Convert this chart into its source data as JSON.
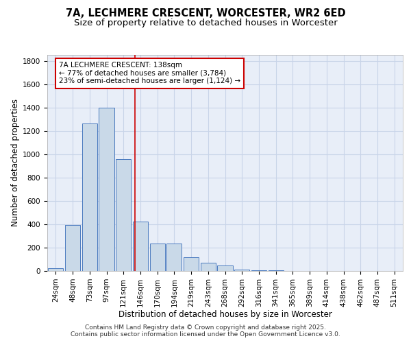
{
  "title_line1": "7A, LECHMERE CRESCENT, WORCESTER, WR2 6ED",
  "title_line2": "Size of property relative to detached houses in Worcester",
  "xlabel": "Distribution of detached houses by size in Worcester",
  "ylabel": "Number of detached properties",
  "bin_labels": [
    "24sqm",
    "48sqm",
    "73sqm",
    "97sqm",
    "121sqm",
    "146sqm",
    "170sqm",
    "194sqm",
    "219sqm",
    "243sqm",
    "268sqm",
    "292sqm",
    "316sqm",
    "341sqm",
    "365sqm",
    "389sqm",
    "414sqm",
    "438sqm",
    "462sqm",
    "487sqm",
    "511sqm"
  ],
  "bar_values": [
    25,
    395,
    1265,
    1400,
    960,
    420,
    235,
    235,
    115,
    70,
    45,
    10,
    5,
    3,
    2,
    2,
    2,
    2,
    2,
    2,
    2
  ],
  "bar_color": "#c9d9e8",
  "bar_edge_color": "#4a7abf",
  "annotation_text": "7A LECHMERE CRESCENT: 138sqm\n← 77% of detached houses are smaller (3,784)\n23% of semi-detached houses are larger (1,124) →",
  "annotation_box_color": "#ffffff",
  "annotation_border_color": "#cc0000",
  "ylim": [
    0,
    1850
  ],
  "yticks": [
    0,
    200,
    400,
    600,
    800,
    1000,
    1200,
    1400,
    1600,
    1800
  ],
  "grid_color": "#c8d4e8",
  "background_color": "#e8eef8",
  "vline_color": "#cc0000",
  "vline_x": 4.68,
  "footer_text": "Contains HM Land Registry data © Crown copyright and database right 2025.\nContains public sector information licensed under the Open Government Licence v3.0.",
  "title_fontsize": 10.5,
  "subtitle_fontsize": 9.5,
  "axis_label_fontsize": 8.5,
  "tick_fontsize": 7.5,
  "annotation_fontsize": 7.5,
  "footer_fontsize": 6.5
}
